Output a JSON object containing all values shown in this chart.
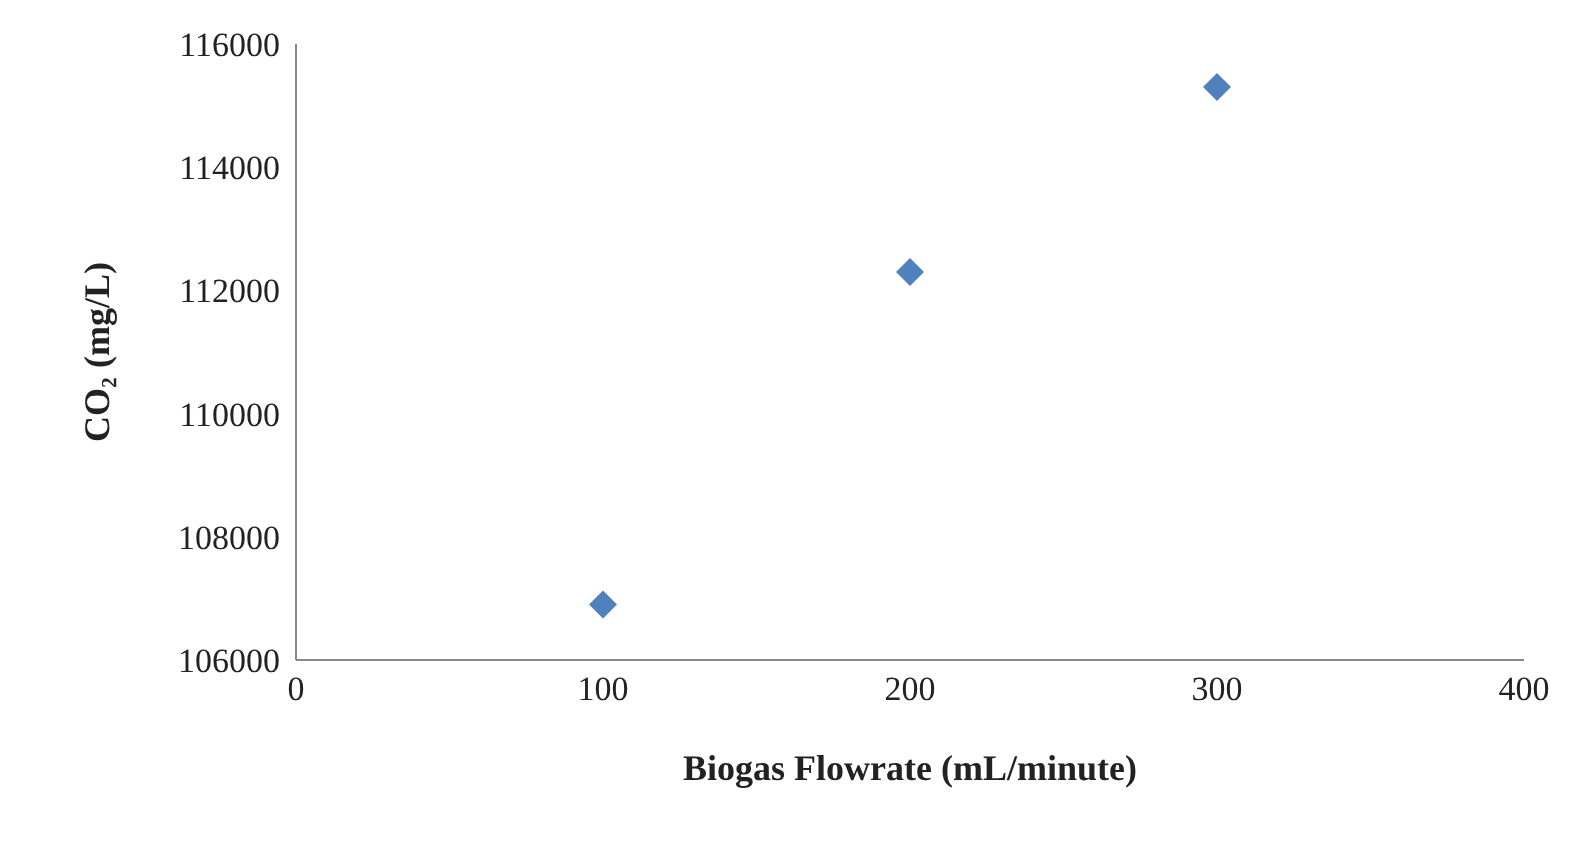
{
  "chart_data": {
    "type": "scatter",
    "xlabel": "Biogas Flowrate (mL/minute)",
    "ylabel": "CO₂ (mg/L)",
    "x": [
      100,
      200,
      300
    ],
    "series": [
      {
        "color": "#4f81bd",
        "values": [
          106900,
          112300,
          115300
        ]
      }
    ],
    "xlim": [
      0,
      400
    ],
    "xticks": [
      0,
      100,
      200,
      300,
      400
    ],
    "ylim": [
      106000,
      116000
    ],
    "yticks": [
      106000,
      108000,
      110000,
      112000,
      114000,
      116000
    ],
    "grid": false,
    "legend": false,
    "marker": "diamond"
  }
}
